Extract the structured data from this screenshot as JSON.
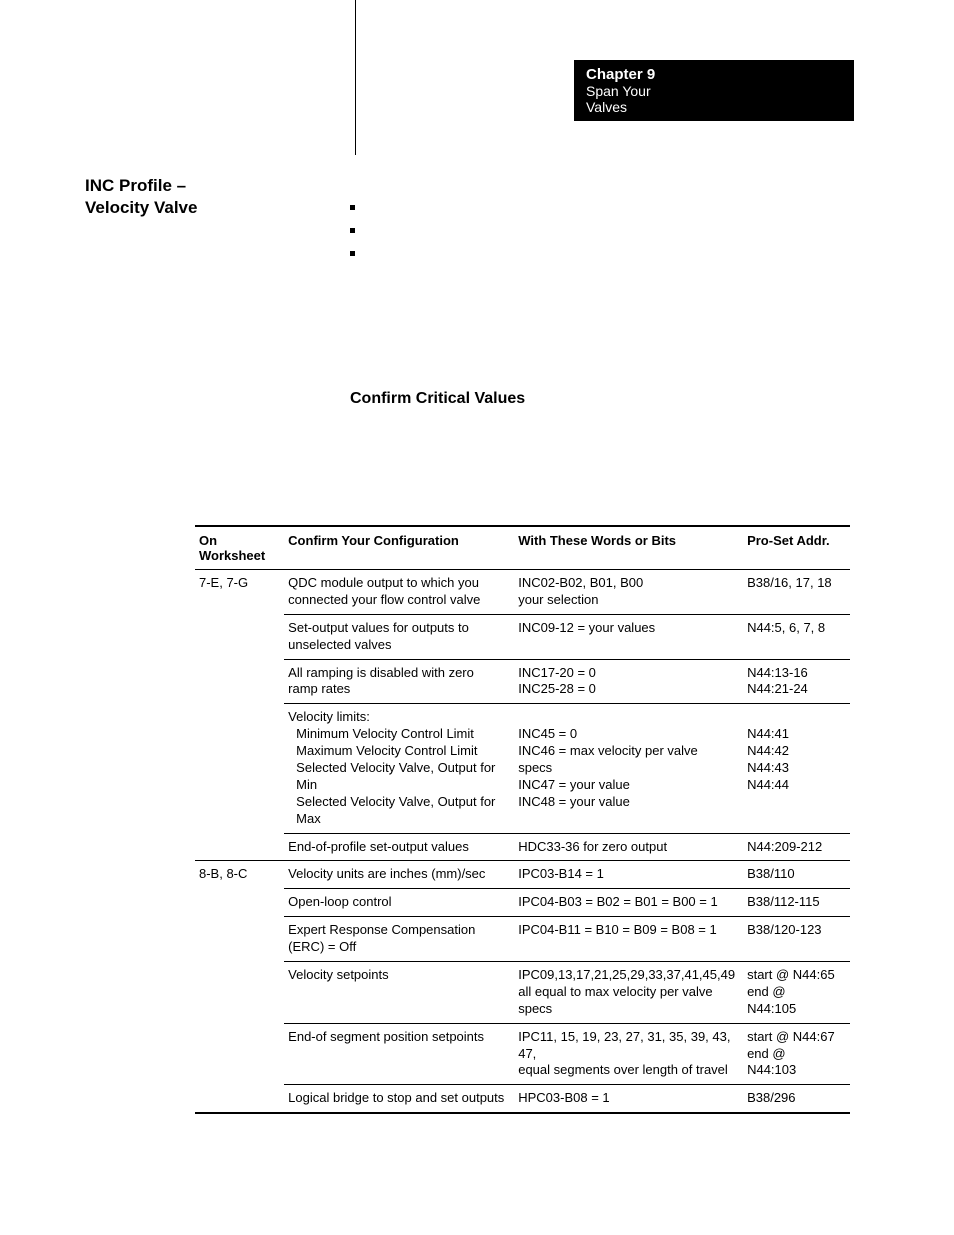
{
  "chapter": {
    "title": "Chapter  9",
    "subtitle": "Span Your Valves"
  },
  "left_heading_line1": "INC Profile –",
  "left_heading_line2": "Velocity Valve",
  "section_heading": "Confirm Critical Values",
  "table": {
    "header": {
      "c1": "On Worksheet",
      "c2": "Confirm Your Configuration",
      "c3": "With These Words or Bits",
      "c4": "Pro-Set Addr."
    },
    "rows": [
      {
        "c1": "7-E, 7-G",
        "c2": "QDC module output to which you connected your flow control valve",
        "c3_l1": "INC02-B02, B01, B00",
        "c3_l2": "your selection",
        "c4": "B38/16, 17, 18"
      },
      {
        "c1": "",
        "c2": "Set-output values for outputs to unselected valves",
        "c3": "INC09-12 = your values",
        "c4": "N44:5, 6, 7, 8"
      },
      {
        "c1": "",
        "c2": "All ramping is disabled with zero ramp rates",
        "c3_l1": "INC17-20 = 0",
        "c3_l2": "INC25-28 = 0",
        "c4_l1": "N44:13-16",
        "c4_l2": "N44:21-24"
      },
      {
        "c1": "",
        "c2_l1": "Velocity limits:",
        "c2_l2": "Minimum Velocity Control Limit",
        "c2_l3": "Maximum Velocity Control Limit",
        "c2_l4": "Selected Velocity Valve, Output for Min",
        "c2_l5": "Selected Velocity Valve, Output for Max",
        "c3_l1": "INC45 = 0",
        "c3_l2": "INC46 = max velocity per valve specs",
        "c3_l3": "INC47 = your value",
        "c3_l4": "INC48 = your value",
        "c4_l1": "N44:41",
        "c4_l2": "N44:42",
        "c4_l3": "N44:43",
        "c4_l4": "N44:44"
      },
      {
        "c1": "",
        "c2": "End-of-profile set-output values",
        "c3": "HDC33-36 for zero output",
        "c4": "N44:209-212"
      },
      {
        "c1": "8-B, 8-C",
        "c2": "Velocity units are inches (mm)/sec",
        "c3": "IPC03-B14 = 1",
        "c4": "B38/110"
      },
      {
        "c1": "",
        "c2": "Open-loop control",
        "c3": "IPC04-B03 = B02 = B01 = B00 = 1",
        "c4": "B38/112-115"
      },
      {
        "c1": "",
        "c2": "Expert Response Compensation (ERC) = Off",
        "c3": "IPC04-B11 = B10 = B09 = B08 = 1",
        "c4": "B38/120-123"
      },
      {
        "c1": "",
        "c2": "Velocity setpoints",
        "c3_l1": "IPC09,13,17,21,25,29,33,37,41,45,49",
        "c3_l2": "all equal to max velocity per valve specs",
        "c4_l1": "start @ N44:65",
        "c4_l2": "end @",
        "c4_l3": "N44:105"
      },
      {
        "c1": "",
        "c2": "End-of segment position setpoints",
        "c3_l1": "IPC11, 15, 19, 23, 27, 31, 35, 39, 43, 47,",
        "c3_l2": "equal segments over length of travel",
        "c4_l1": "start @ N44:67",
        "c4_l2": "end @",
        "c4_l3": "N44:103"
      },
      {
        "c1": "",
        "c2": "Logical bridge to stop and set outputs",
        "c3": "HPC03-B08 = 1",
        "c4": "B38/296"
      }
    ]
  }
}
